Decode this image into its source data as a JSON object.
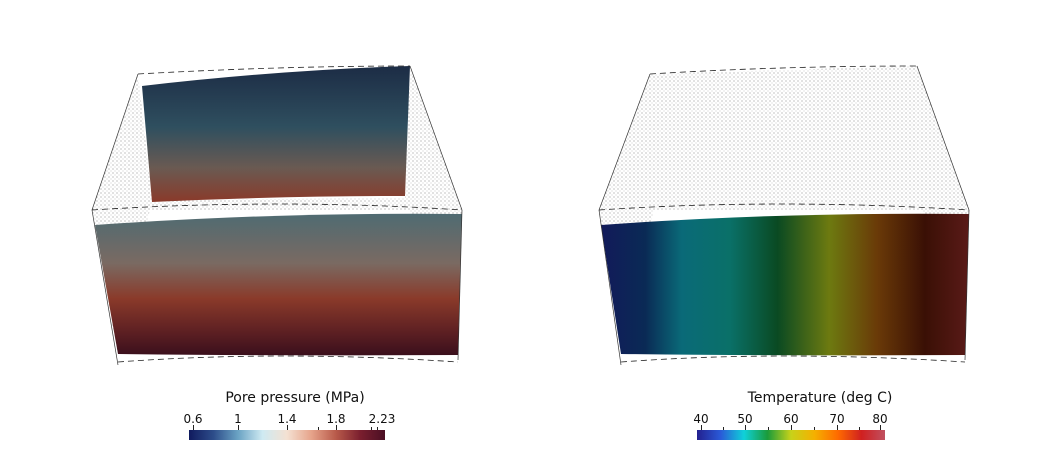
{
  "left_panel": {
    "colorbar": {
      "title": "Pore pressure (MPa)",
      "ticks": [
        "0.6",
        "1",
        "1.4",
        "1.8",
        "2.23"
      ],
      "colormap": [
        "#101a5e",
        "#2d4d8a",
        "#6aa3c4",
        "#cfeaf2",
        "#f4e1d2",
        "#e6a38a",
        "#b85a4a",
        "#7a1e2e",
        "#4a0f24"
      ]
    },
    "field_colors": [
      "#1c2c45",
      "#2f4f5f",
      "#4f6b6f",
      "#7a5a4c",
      "#8a3a2a",
      "#5a1e22",
      "#3a0f1c"
    ]
  },
  "right_panel": {
    "colorbar": {
      "title": "Temperature (deg C)",
      "ticks": [
        "40",
        "50",
        "60",
        "70",
        "80"
      ],
      "colormap": [
        "#23208f",
        "#2a5ad8",
        "#0fd1d9",
        "#1a9b3a",
        "#c8d21a",
        "#f5b000",
        "#ff6a00",
        "#d02020",
        "#c05060"
      ]
    },
    "field_colors": [
      "#111a55",
      "#0a6a78",
      "#0a7068",
      "#0a4a22",
      "#6d7a10",
      "#5a2a05",
      "#3a1005",
      "#5a1a18"
    ]
  }
}
